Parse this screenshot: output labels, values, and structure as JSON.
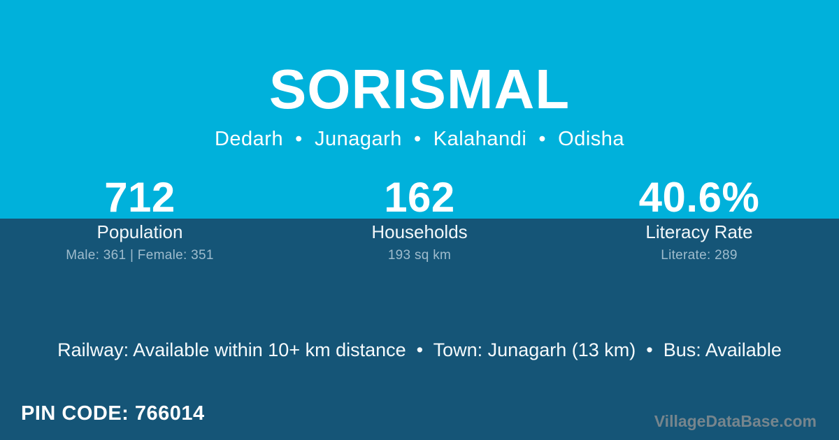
{
  "colors": {
    "top_background": "#00b1db",
    "bottom_background": "#155577",
    "primary_text": "#ffffff",
    "muted_text": "#9fbccd",
    "watermark_text": "#76858d"
  },
  "header": {
    "title": "SORISMAL",
    "location": "Dedarh  •  Junagarh  •  Kalahandi  •  Odisha",
    "location_parts": [
      "Dedarh",
      "Junagarh",
      "Kalahandi",
      "Odisha"
    ]
  },
  "stats": [
    {
      "value": "712",
      "label": "Population",
      "detail": "Male: 361 | Female: 351"
    },
    {
      "value": "162",
      "label": "Households",
      "detail": "193 sq km"
    },
    {
      "value": "40.6%",
      "label": "Literacy Rate",
      "detail": "Literate: 289"
    }
  ],
  "transport_line": "Railway: Available within 10+ km distance  •  Town: Junagarh (13 km)  •  Bus: Available",
  "transport": {
    "railway": "Available within 10+ km distance",
    "town": "Junagarh (13 km)",
    "bus": "Available"
  },
  "footer": {
    "pin_code": "PIN CODE: 766014",
    "watermark": "VillageDataBase.com"
  }
}
